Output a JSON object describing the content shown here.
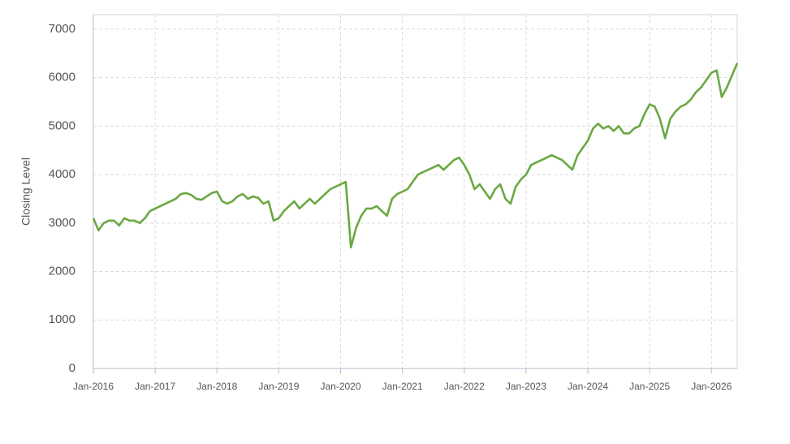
{
  "chart_data": {
    "type": "line",
    "y_label": "Closing Level",
    "x": [
      "2016-01",
      "2016-02",
      "2016-03",
      "2016-04",
      "2016-05",
      "2016-06",
      "2016-07",
      "2016-08",
      "2016-09",
      "2016-10",
      "2016-11",
      "2016-12",
      "2017-01",
      "2017-02",
      "2017-03",
      "2017-04",
      "2017-05",
      "2017-06",
      "2017-07",
      "2017-08",
      "2017-09",
      "2017-10",
      "2017-11",
      "2017-12",
      "2018-01",
      "2018-02",
      "2018-03",
      "2018-04",
      "2018-05",
      "2018-06",
      "2018-07",
      "2018-08",
      "2018-09",
      "2018-10",
      "2018-11",
      "2018-12",
      "2019-01",
      "2019-02",
      "2019-03",
      "2019-04",
      "2019-05",
      "2019-06",
      "2019-07",
      "2019-08",
      "2019-09",
      "2019-10",
      "2019-11",
      "2019-12",
      "2020-01",
      "2020-02",
      "2020-03",
      "2020-04",
      "2020-05",
      "2020-06",
      "2020-07",
      "2020-08",
      "2020-09",
      "2020-10",
      "2020-11",
      "2020-12",
      "2021-01",
      "2021-02",
      "2021-03",
      "2021-04",
      "2021-05",
      "2021-06",
      "2021-07",
      "2021-08",
      "2021-09",
      "2021-10",
      "2021-11",
      "2021-12",
      "2022-01",
      "2022-02",
      "2022-03",
      "2022-04",
      "2022-05",
      "2022-06",
      "2022-07",
      "2022-08",
      "2022-09",
      "2022-10",
      "2022-11",
      "2022-12",
      "2023-01",
      "2023-02",
      "2023-03",
      "2023-04",
      "2023-05",
      "2023-06",
      "2023-07",
      "2023-08",
      "2023-09",
      "2023-10",
      "2023-11",
      "2023-12",
      "2024-01",
      "2024-02",
      "2024-03",
      "2024-04",
      "2024-05",
      "2024-06",
      "2024-07",
      "2024-08",
      "2024-09",
      "2024-10",
      "2024-11",
      "2024-12",
      "2025-01",
      "2025-02",
      "2025-03",
      "2025-04",
      "2025-05",
      "2025-06",
      "2025-07",
      "2025-08",
      "2025-09",
      "2025-10",
      "2025-11",
      "2025-12",
      "2026-01",
      "2026-02",
      "2026-03",
      "2026-04",
      "2026-05",
      "2026-06"
    ],
    "series": [
      {
        "color": "#6aa842",
        "values": [
          3100,
          2850,
          3000,
          3050,
          3050,
          2950,
          3100,
          3050,
          3050,
          3000,
          3100,
          3250,
          3300,
          3350,
          3400,
          3450,
          3500,
          3600,
          3620,
          3580,
          3500,
          3480,
          3550,
          3620,
          3650,
          3450,
          3400,
          3450,
          3550,
          3600,
          3500,
          3550,
          3520,
          3400,
          3450,
          3050,
          3100,
          3250,
          3350,
          3450,
          3300,
          3400,
          3500,
          3400,
          3500,
          3600,
          3700,
          3750,
          3800,
          3850,
          2500,
          2900,
          3150,
          3300,
          3300,
          3350,
          3250,
          3150,
          3500,
          3600,
          3650,
          3700,
          3850,
          4000,
          4050,
          4100,
          4150,
          4200,
          4100,
          4200,
          4300,
          4350,
          4200,
          4000,
          3700,
          3800,
          3650,
          3500,
          3700,
          3800,
          3500,
          3400,
          3750,
          3900,
          4000,
          4200,
          4250,
          4300,
          4350,
          4400,
          4350,
          4300,
          4200,
          4100,
          4400,
          4550,
          4700,
          4950,
          5050,
          4950,
          5000,
          4900,
          5000,
          4850,
          4850,
          4950,
          5000,
          5250,
          5450,
          5400,
          5150,
          4750,
          5150,
          5300,
          5400,
          5450,
          5550,
          5700,
          5800,
          5950,
          6100,
          6150,
          5600,
          5800,
          6050,
          6300
        ]
      }
    ],
    "xlim": [
      "2016-01",
      "2026-06"
    ],
    "xticks": [
      {
        "value": "2016-01",
        "label": "Jan-2016"
      },
      {
        "value": "2017-01",
        "label": "Jan-2017"
      },
      {
        "value": "2018-01",
        "label": "Jan-2018"
      },
      {
        "value": "2019-01",
        "label": "Jan-2019"
      },
      {
        "value": "2020-01",
        "label": "Jan-2020"
      },
      {
        "value": "2021-01",
        "label": "Jan-2021"
      },
      {
        "value": "2022-01",
        "label": "Jan-2022"
      },
      {
        "value": "2023-01",
        "label": "Jan-2023"
      },
      {
        "value": "2024-01",
        "label": "Jan-2024"
      },
      {
        "value": "2025-01",
        "label": "Jan-2025"
      },
      {
        "value": "2026-01",
        "label": "Jan-2026"
      }
    ],
    "ylim": [
      0,
      7300
    ],
    "yticks": [
      0,
      1000,
      2000,
      3000,
      4000,
      5000,
      6000,
      7000
    ],
    "grid": true
  }
}
